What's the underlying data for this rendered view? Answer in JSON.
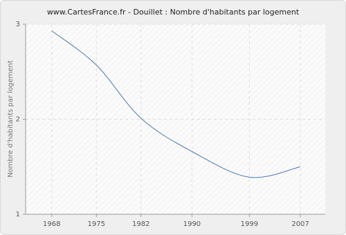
{
  "chart_data": {
    "type": "line",
    "title": "www.CartesFrance.fr - Douillet : Nombre d'habitants par logement",
    "y_label": "Nombre d'habitants par logement",
    "x": [
      1968,
      1975,
      1982,
      1990,
      1999,
      2007
    ],
    "series": [
      {
        "name": "Nombre d'habitants par logement",
        "color": "#4a78ad",
        "values": [
          2.93,
          2.57,
          2.01,
          1.66,
          1.39,
          1.5
        ]
      }
    ],
    "xlim": [
      1963.9,
      2010.9
    ],
    "xticks": [
      1968,
      1975,
      1982,
      1990,
      1999,
      2007
    ],
    "ylim": [
      1,
      3
    ],
    "yticks": [
      1,
      2,
      3
    ],
    "grid": true
  }
}
